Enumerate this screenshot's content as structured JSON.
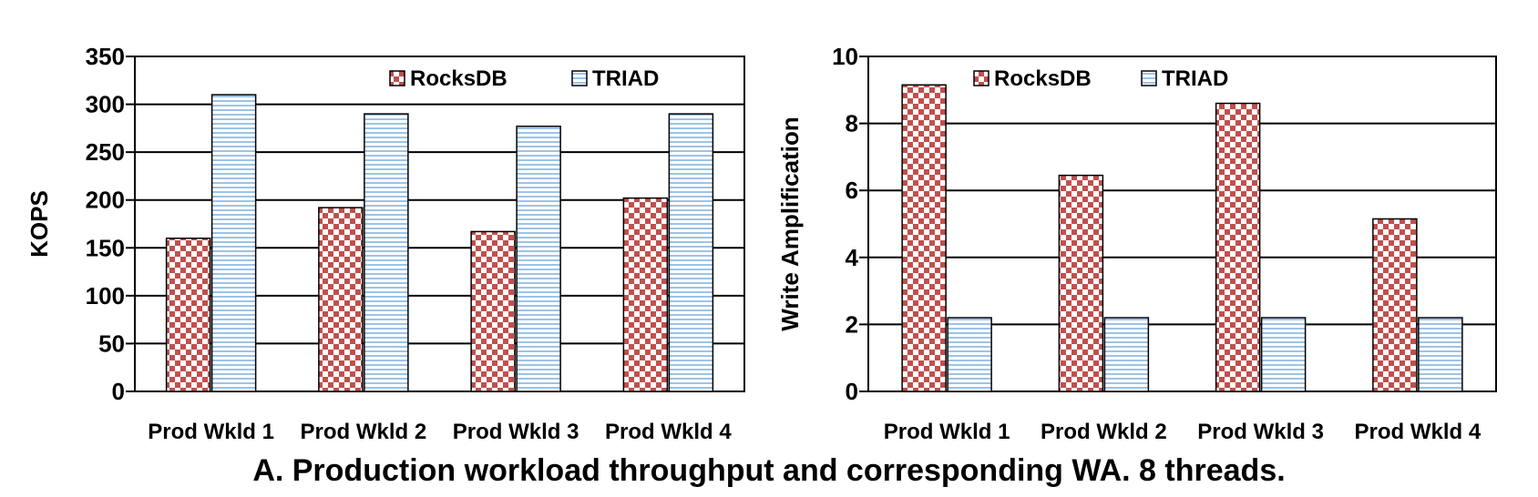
{
  "caption": "A. Production workload throughput and corresponding WA. 8 threads.",
  "colors": {
    "rocksdb": "#c0504d",
    "triad": "#9dc3e6"
  },
  "chart_data": [
    {
      "type": "bar",
      "title": "",
      "xlabel": "",
      "ylabel": "KOPS",
      "ylim": [
        0,
        350
      ],
      "yticks": [
        0,
        50,
        100,
        150,
        200,
        250,
        300,
        350
      ],
      "grid": true,
      "legend_position": "top-right",
      "categories": [
        "Prod Wkld 1",
        "Prod Wkld 2",
        "Prod Wkld 3",
        "Prod Wkld 4"
      ],
      "series": [
        {
          "name": "RocksDB",
          "pattern": "checkered",
          "values": [
            160,
            192,
            167,
            202
          ]
        },
        {
          "name": "TRIAD",
          "pattern": "horizontal-stripes",
          "values": [
            310,
            290,
            277,
            290
          ]
        }
      ]
    },
    {
      "type": "bar",
      "title": "",
      "xlabel": "",
      "ylabel": "Write Amplification",
      "ylim": [
        0,
        10
      ],
      "yticks": [
        0,
        2,
        4,
        6,
        8,
        10
      ],
      "grid": true,
      "legend_position": "top",
      "categories": [
        "Prod Wkld 1",
        "Prod Wkld 2",
        "Prod Wkld 3",
        "Prod Wkld 4"
      ],
      "series": [
        {
          "name": "RocksDB",
          "pattern": "checkered",
          "values": [
            9.15,
            6.45,
            8.6,
            5.15
          ]
        },
        {
          "name": "TRIAD",
          "pattern": "horizontal-stripes",
          "values": [
            2.2,
            2.2,
            2.2,
            2.2
          ]
        }
      ]
    }
  ]
}
